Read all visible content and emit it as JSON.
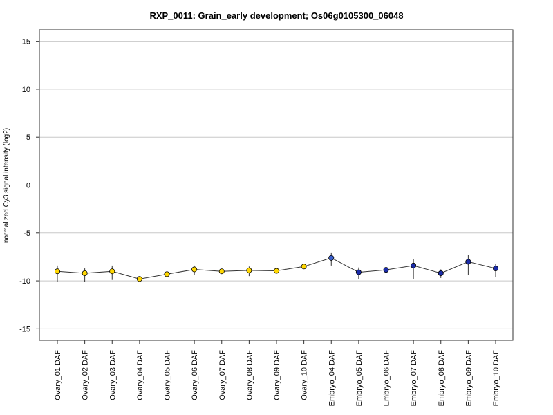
{
  "colors": {
    "ovary_fill": "#FFD700",
    "embryo_fill": "#1A2BA8",
    "embryo_fill_first": "#3A5FCD",
    "marker_stroke": "#000000",
    "grid": "#C8C8C8",
    "line": "#333333"
  },
  "chart_data": {
    "type": "line",
    "title": "RXP_0011: Grain_early development; Os06g0105300_06048",
    "xlabel": "",
    "ylabel": "normalized Cy3 signal intensity (log2)",
    "ylim": [
      -16.2,
      16.2
    ],
    "yticks": [
      -15,
      -10,
      -5,
      0,
      5,
      10,
      15
    ],
    "grid": "horizontal",
    "legend": "none",
    "categories": [
      "Ovary_01 DAF",
      "Ovary_02 DAF",
      "Ovary_03 DAF",
      "Ovary_04 DAF",
      "Ovary_05 DAF",
      "Ovary_06 DAF",
      "Ovary_07 DAF",
      "Ovary_08 DAF",
      "Ovary_09 DAF",
      "Ovary_10 DAF",
      "Embryo_04 DAF",
      "Embryo_05 DAF",
      "Embryo_06 DAF",
      "Embryo_07 DAF",
      "Embryo_08 DAF",
      "Embryo_09 DAF",
      "Embryo_10 DAF"
    ],
    "series": [
      {
        "values": [
          -9.0,
          -9.2,
          -9.0,
          -9.8,
          -9.3,
          -8.8,
          -9.0,
          -8.9,
          -8.95,
          -8.5,
          -7.6,
          -9.1,
          -8.85,
          -8.4,
          -9.2,
          -8.0,
          -8.7
        ],
        "err_low": [
          -10.1,
          -10.1,
          -9.9,
          -10.0,
          -9.5,
          -9.4,
          -9.2,
          -9.5,
          -9.1,
          -8.7,
          -8.4,
          -9.8,
          -9.4,
          -9.8,
          -9.7,
          -9.4,
          -9.6
        ],
        "err_high": [
          -8.4,
          -8.7,
          -8.4,
          -9.6,
          -9.1,
          -8.4,
          -8.8,
          -8.5,
          -8.8,
          -8.3,
          -7.1,
          -8.6,
          -8.4,
          -7.7,
          -8.8,
          -7.3,
          -8.2
        ],
        "groups": [
          "ovary",
          "ovary",
          "ovary",
          "ovary",
          "ovary",
          "ovary",
          "ovary",
          "ovary",
          "ovary",
          "ovary",
          "embryo_first",
          "embryo",
          "embryo",
          "embryo",
          "embryo",
          "embryo",
          "embryo"
        ]
      }
    ]
  }
}
